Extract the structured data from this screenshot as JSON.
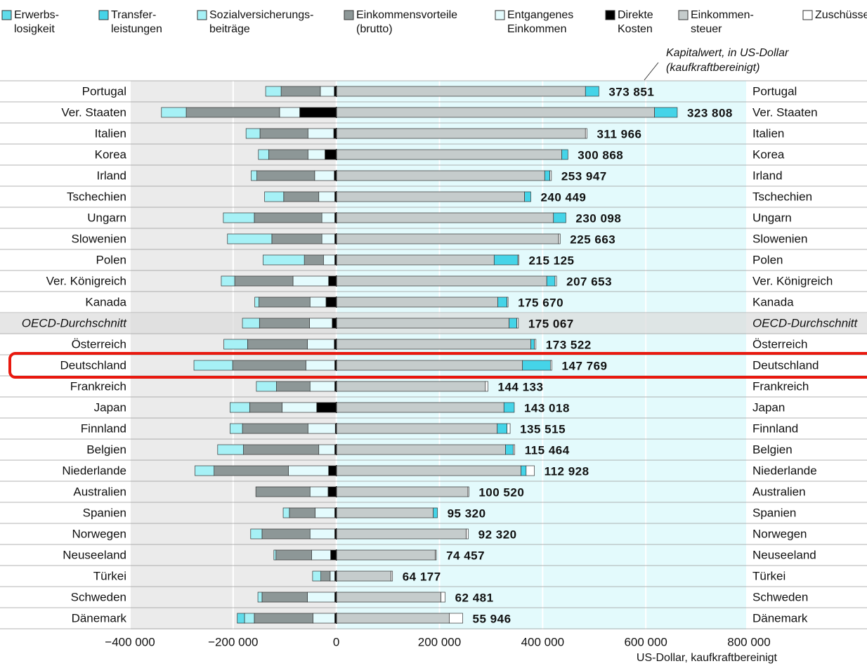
{
  "chart_data": {
    "type": "diverging-stacked-bar",
    "annotation": [
      "Kapitalwert, in US-Dollar",
      "(kaufkraftbereinigt)"
    ],
    "x_label": "US-Dollar, kaufkraftbereinigt",
    "categories": [
      "Portugal",
      "Ver. Staaten",
      "Italien",
      "Korea",
      "Irland",
      "Tschechien",
      "Ungarn",
      "Slowenien",
      "Polen",
      "Ver. Königreich",
      "Kanada",
      "OECD-Durchschnitt",
      "Österreich",
      "Deutschland",
      "Frankreich",
      "Japan",
      "Finnland",
      "Belgien",
      "Niederlande",
      "Australien",
      "Spanien",
      "Norwegen",
      "Neuseeland",
      "Türkei",
      "Schweden",
      "Dänemark"
    ],
    "series": [
      {
        "name": "Erwerbs-\nlosigkeit",
        "color": "#5fdcea",
        "values": [
          0,
          0,
          0,
          0,
          0,
          0,
          0,
          0,
          0,
          0,
          0,
          0,
          0,
          0,
          0,
          0,
          0,
          0,
          0,
          0,
          0,
          0,
          0,
          0,
          0,
          -14000
        ]
      },
      {
        "name": "Transfer-\nleistungen",
        "color": "#45d4e8",
        "values": [
          26000,
          44000,
          0,
          12000,
          10000,
          12000,
          24000,
          0,
          46000,
          16000,
          18000,
          15000,
          7000,
          54000,
          0,
          20000,
          19000,
          15000,
          10000,
          0,
          8000,
          0,
          0,
          0,
          0,
          0
        ]
      },
      {
        "name": "Sozialversicherungs-\nbeiträge",
        "color": "#a6f1f6",
        "values": [
          -30000,
          -48000,
          -27000,
          -20000,
          -11000,
          -37000,
          -60000,
          -86000,
          -80000,
          -26000,
          -8000,
          -33000,
          -46000,
          -75000,
          -39000,
          -38000,
          -24000,
          -50000,
          -37000,
          0,
          -12000,
          -22000,
          -4000,
          -16000,
          -8000,
          -19000
        ]
      },
      {
        "name": "Einkommensvorteile\n(brutto)",
        "color": "#8d9797",
        "values": [
          -76000,
          -181000,
          -93000,
          -76000,
          -112000,
          -68000,
          -131000,
          -97000,
          -37000,
          -113000,
          -99000,
          -97000,
          -116000,
          -142000,
          -65000,
          -63000,
          -127000,
          -146000,
          -144000,
          -105000,
          -50000,
          -93000,
          -69000,
          -18000,
          -88000,
          -114000
        ]
      },
      {
        "name": "Entgangenes\nEinkommen",
        "color": "#e4fbfd",
        "values": [
          -27000,
          -39000,
          -50000,
          -33000,
          -38000,
          -31000,
          -25000,
          -25000,
          -22000,
          -69000,
          -31000,
          -44000,
          -52000,
          -56000,
          -48000,
          -67000,
          -53000,
          -31000,
          -78000,
          -35000,
          -38000,
          -48000,
          -37000,
          -9000,
          -53000,
          -42000
        ]
      },
      {
        "name": "Direkte\nKosten",
        "color": "#000000",
        "values": [
          -4000,
          -71000,
          -5000,
          -22000,
          -4000,
          -3000,
          -3000,
          -3000,
          -3000,
          -15000,
          -20000,
          -8000,
          -4000,
          -3000,
          -3000,
          -38000,
          -2000,
          -3000,
          -15000,
          -16000,
          -3000,
          -3000,
          -11000,
          -3000,
          -3000,
          -3000
        ]
      },
      {
        "name": "Einkommen-\nsteuer",
        "color": "#c5cccc",
        "values": [
          483000,
          617000,
          483000,
          437000,
          404000,
          365000,
          421000,
          431000,
          306000,
          408000,
          313000,
          335000,
          377000,
          361000,
          289000,
          325000,
          312000,
          328000,
          358000,
          255000,
          188000,
          252000,
          192000,
          106000,
          203000,
          219000
        ]
      },
      {
        "name": "Zuschüsse",
        "color": "#ffffff",
        "values": [
          0,
          0,
          3000,
          0,
          3000,
          0,
          0,
          3000,
          2000,
          3000,
          2000,
          3000,
          3000,
          3000,
          5000,
          0,
          6000,
          3000,
          16000,
          2000,
          0,
          4000,
          2000,
          3000,
          8000,
          26000
        ]
      }
    ],
    "values": [
      373851,
      323808,
      311966,
      300868,
      253947,
      240449,
      230098,
      225663,
      215125,
      207653,
      175670,
      175067,
      173522,
      147769,
      144133,
      143018,
      135515,
      115464,
      112928,
      100520,
      95320,
      92320,
      74457,
      64177,
      62481,
      55946
    ],
    "value_labels": [
      "373 851",
      "323 808",
      "311 966",
      "300 868",
      "253 947",
      "240 449",
      "230 098",
      "225 663",
      "215 125",
      "207 653",
      "175 670",
      "175 067",
      "173 522",
      "147 769",
      "144 133",
      "143 018",
      "135 515",
      "115 464",
      "112 928",
      "100 520",
      "95 320",
      "92 320",
      "74 457",
      "64 177",
      "62 481",
      "55 946"
    ],
    "xlim": [
      -400000,
      800000
    ],
    "xticks": [
      {
        "value": -400000,
        "label": "−400 000"
      },
      {
        "value": -200000,
        "label": "−200 000"
      },
      0,
      {
        "value": 200000,
        "label": "200 000"
      },
      {
        "value": 400000,
        "label": "400 000"
      },
      {
        "value": 600000,
        "label": "600 000"
      },
      {
        "value": 800000,
        "label": "800 000"
      }
    ],
    "grid": true
  }
}
